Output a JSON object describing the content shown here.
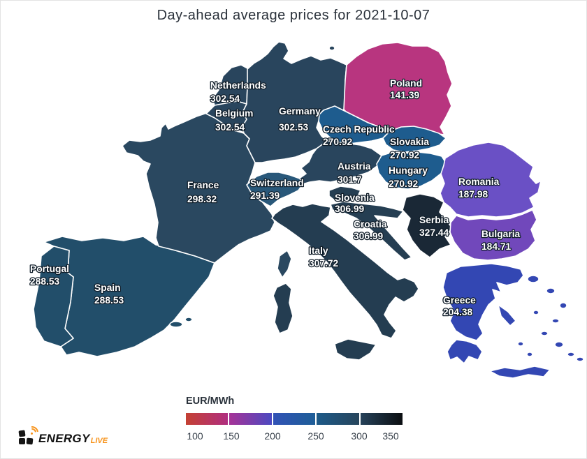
{
  "title": "Day-ahead average prices for 2021-10-07",
  "legend": {
    "unit_label": "EUR/MWh",
    "ticks": [
      "100",
      "150",
      "200",
      "250",
      "300",
      "350"
    ],
    "segments": [
      {
        "from": "#c44133",
        "to": "#b02e80"
      },
      {
        "from": "#a63397",
        "to": "#4c49c0"
      },
      {
        "from": "#3152b6",
        "to": "#1e5e97"
      },
      {
        "from": "#1d5a88",
        "to": "#27455c"
      },
      {
        "from": "#26425a",
        "to": "#0c0e11"
      }
    ]
  },
  "logo": {
    "brand": "ENERGY",
    "suffix": "LIVE"
  },
  "chart_data": {
    "type": "heatmap",
    "title": "Day-ahead average prices for 2021-10-07",
    "unit": "EUR/MWh",
    "scale": {
      "min": 100,
      "max": 350,
      "ticks": [
        100,
        150,
        200,
        250,
        300,
        350
      ]
    },
    "categories": [
      "Spain",
      "Portugal",
      "France",
      "Netherlands",
      "Belgium",
      "Germany",
      "Poland",
      "Czech Republic",
      "Slovakia",
      "Austria",
      "Hungary",
      "Switzerland",
      "Italy",
      "Slovenia",
      "Croatia",
      "Serbia",
      "Romania",
      "Bulgaria",
      "Greece"
    ],
    "values": [
      288.53,
      288.53,
      298.32,
      302.54,
      302.54,
      302.53,
      141.39,
      270.92,
      270.92,
      301.7,
      270.92,
      291.39,
      307.72,
      306.99,
      306.99,
      327.44,
      187.98,
      184.71,
      204.38
    ]
  },
  "countries": [
    {
      "id": "spain",
      "name": "Spain",
      "value": "288.53",
      "color": "#224e6a"
    },
    {
      "id": "portugal",
      "name": "Portugal",
      "value": "288.53",
      "color": "#224e6a"
    },
    {
      "id": "france",
      "name": "France",
      "value": "298.32",
      "color": "#2a4860"
    },
    {
      "id": "netherlands",
      "name": "Netherlands",
      "value": "302.54",
      "color": "#29455d"
    },
    {
      "id": "belgium",
      "name": "Belgium",
      "value": "302.54",
      "color": "#29455d"
    },
    {
      "id": "germany",
      "name": "Germany",
      "value": "302.53",
      "color": "#29455d"
    },
    {
      "id": "poland",
      "name": "Poland",
      "value": "141.39",
      "color": "#b8357f"
    },
    {
      "id": "czech",
      "name": "Czech Republic",
      "value": "270.92",
      "color": "#1e5c8e"
    },
    {
      "id": "slovakia",
      "name": "Slovakia",
      "value": "270.92",
      "color": "#1e5c8e"
    },
    {
      "id": "austria",
      "name": "Austria",
      "value": "301.7",
      "color": "#29455d"
    },
    {
      "id": "hungary",
      "name": "Hungary",
      "value": "270.92",
      "color": "#1e5c8e"
    },
    {
      "id": "switzerland",
      "name": "Switzerland",
      "value": "291.39",
      "color": "#29587a"
    },
    {
      "id": "italy",
      "name": "Italy",
      "value": "307.72",
      "color": "#243d51"
    },
    {
      "id": "slovenia",
      "name": "Slovenia",
      "value": "306.99",
      "color": "#253e52"
    },
    {
      "id": "croatia",
      "name": "Croatia",
      "value": "306.99",
      "color": "#253e52"
    },
    {
      "id": "serbia",
      "name": "Serbia",
      "value": "327.44",
      "color": "#1a2836"
    },
    {
      "id": "romania",
      "name": "Romania",
      "value": "187.98",
      "color": "#6a50c5"
    },
    {
      "id": "bulgaria",
      "name": "Bulgaria",
      "value": "184.71",
      "color": "#7148bb"
    },
    {
      "id": "greece",
      "name": "Greece",
      "value": "204.38",
      "color": "#3347b3"
    }
  ]
}
